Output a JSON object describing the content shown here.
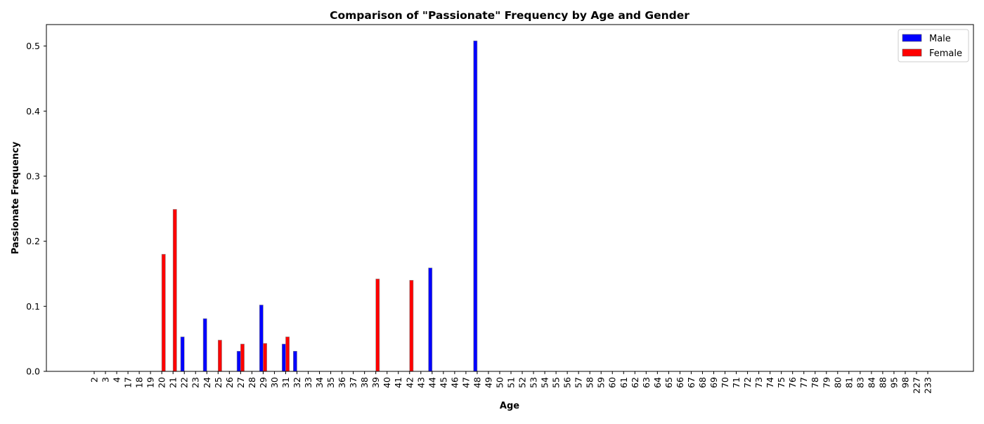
{
  "chart_data": {
    "type": "bar",
    "title": "Comparison of \"Passionate\" Frequency by Age and Gender",
    "xlabel": "Age",
    "ylabel": "Passionate Frequency",
    "ylim": [
      0,
      0.533
    ],
    "yticks": [
      "0.0",
      "0.1",
      "0.2",
      "0.3",
      "0.4",
      "0.5"
    ],
    "ytick_values": [
      0,
      0.1,
      0.2,
      0.3,
      0.4,
      0.5
    ],
    "grid": false,
    "legend_position": "top-right",
    "categories": [
      "2",
      "3",
      "4",
      "17",
      "18",
      "19",
      "20",
      "21",
      "22",
      "23",
      "24",
      "25",
      "26",
      "27",
      "28",
      "29",
      "30",
      "31",
      "32",
      "33",
      "34",
      "35",
      "36",
      "37",
      "38",
      "39",
      "40",
      "41",
      "42",
      "43",
      "44",
      "45",
      "46",
      "47",
      "48",
      "49",
      "50",
      "51",
      "52",
      "53",
      "54",
      "55",
      "56",
      "57",
      "58",
      "59",
      "60",
      "61",
      "62",
      "63",
      "64",
      "65",
      "66",
      "67",
      "68",
      "69",
      "70",
      "71",
      "72",
      "73",
      "74",
      "75",
      "76",
      "77",
      "78",
      "79",
      "80",
      "81",
      "83",
      "84",
      "88",
      "95",
      "98",
      "227",
      "233"
    ],
    "series": [
      {
        "name": "Male",
        "color": "#0000ff",
        "values": [
          0,
          0,
          0,
          0,
          0,
          0,
          0,
          0,
          0.053,
          0,
          0.081,
          0,
          0,
          0.031,
          0,
          0.102,
          0,
          0.042,
          0.031,
          0,
          0,
          0,
          0,
          0,
          0,
          0,
          0,
          0,
          0,
          0,
          0.159,
          0,
          0,
          0,
          0.508,
          0,
          0,
          0,
          0,
          0,
          0,
          0,
          0,
          0,
          0,
          0,
          0,
          0,
          0,
          0,
          0,
          0,
          0,
          0,
          0,
          0,
          0,
          0,
          0,
          0,
          0,
          0,
          0,
          0,
          0,
          0,
          0,
          0,
          0,
          0,
          0,
          0,
          0,
          0,
          0
        ]
      },
      {
        "name": "Female",
        "color": "#ff0000",
        "values": [
          0,
          0,
          0,
          0,
          0,
          0,
          0.18,
          0.249,
          0,
          0,
          0,
          0.048,
          0,
          0.042,
          0,
          0.043,
          0,
          0.053,
          0,
          0,
          0,
          0,
          0,
          0,
          0,
          0.142,
          0,
          0,
          0.14,
          0,
          0,
          0,
          0,
          0,
          0,
          0,
          0,
          0,
          0,
          0,
          0,
          0,
          0,
          0,
          0,
          0,
          0,
          0,
          0,
          0,
          0,
          0,
          0,
          0,
          0,
          0,
          0,
          0,
          0,
          0,
          0,
          0,
          0,
          0,
          0,
          0,
          0,
          0,
          0,
          0,
          0,
          0,
          0,
          0,
          0
        ]
      }
    ]
  }
}
